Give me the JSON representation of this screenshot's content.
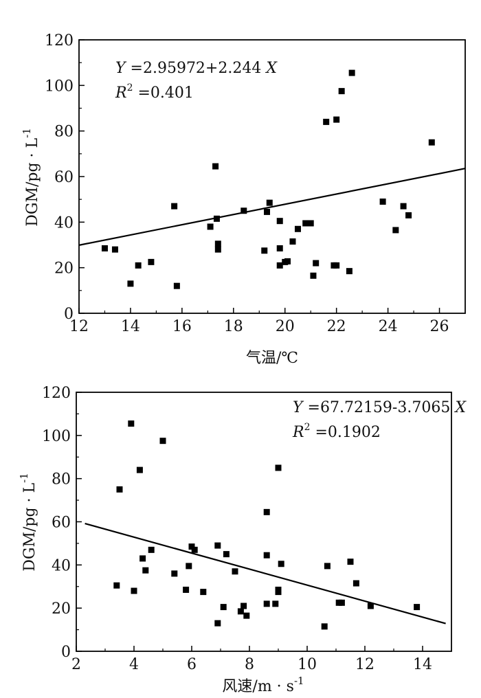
{
  "chart_data": [
    {
      "type": "scatter",
      "xlabel": "气温/℃",
      "ylabel": "DGM/pg · L",
      "ylabel_sup": "-1",
      "xlim": [
        12,
        27
      ],
      "ylim": [
        0,
        120
      ],
      "xticks": [
        12,
        14,
        16,
        18,
        20,
        22,
        24,
        26
      ],
      "yticks": [
        0,
        20,
        40,
        60,
        80,
        100,
        120
      ],
      "grid": false,
      "equation": {
        "y": "Y",
        "rhs": " =2.95972+2.244 ",
        "x": "X"
      },
      "r2": {
        "r": "R",
        "sup": "2",
        "value": "  =0.401"
      },
      "fit": {
        "intercept": 2.95972,
        "slope": 2.244
      },
      "points": [
        [
          13.0,
          28.5
        ],
        [
          13.4,
          28.0
        ],
        [
          14.0,
          13.0
        ],
        [
          14.3,
          21.0
        ],
        [
          14.8,
          22.5
        ],
        [
          15.7,
          47.0
        ],
        [
          15.8,
          12.0
        ],
        [
          17.1,
          38.0
        ],
        [
          17.3,
          64.5
        ],
        [
          17.35,
          41.5
        ],
        [
          17.4,
          30.5
        ],
        [
          17.4,
          28.0
        ],
        [
          18.4,
          45.0
        ],
        [
          19.2,
          27.5
        ],
        [
          19.3,
          44.5
        ],
        [
          19.4,
          48.5
        ],
        [
          19.8,
          40.5
        ],
        [
          19.8,
          28.5
        ],
        [
          19.8,
          21.0
        ],
        [
          20.0,
          22.5
        ],
        [
          20.1,
          22.8
        ],
        [
          20.3,
          31.5
        ],
        [
          20.5,
          37.0
        ],
        [
          20.8,
          39.5
        ],
        [
          21.0,
          39.5
        ],
        [
          21.1,
          16.5
        ],
        [
          21.2,
          22.0
        ],
        [
          21.6,
          84.0
        ],
        [
          21.9,
          21.0
        ],
        [
          22.0,
          21.0
        ],
        [
          22.0,
          85.0
        ],
        [
          22.2,
          97.5
        ],
        [
          22.5,
          18.5
        ],
        [
          22.6,
          105.5
        ],
        [
          23.8,
          49.0
        ],
        [
          24.3,
          36.5
        ],
        [
          24.6,
          47.0
        ],
        [
          24.8,
          43.0
        ],
        [
          25.7,
          75.0
        ]
      ]
    },
    {
      "type": "scatter",
      "xlabel": "风速/m · s",
      "xlabel_sup": "-1",
      "ylabel": "DGM/pg · L",
      "ylabel_sup": "-1",
      "xlim": [
        2,
        15
      ],
      "ylim": [
        0,
        120
      ],
      "xticks": [
        2,
        4,
        6,
        8,
        10,
        12,
        14
      ],
      "yticks": [
        0,
        20,
        40,
        60,
        80,
        100,
        120
      ],
      "grid": false,
      "equation": {
        "y": "Y",
        "rhs": " =67.72159-3.7065 ",
        "x": "X"
      },
      "r2": {
        "r": "R",
        "sup": "2",
        "value": "  =0.1902"
      },
      "fit": {
        "intercept": 67.72159,
        "slope": -3.7065,
        "xrange": [
          2.3,
          14.8
        ]
      },
      "points": [
        [
          3.4,
          30.5
        ],
        [
          3.5,
          75.0
        ],
        [
          3.9,
          105.5
        ],
        [
          4.0,
          28.0
        ],
        [
          4.2,
          84.0
        ],
        [
          4.3,
          43.0
        ],
        [
          4.4,
          37.5
        ],
        [
          4.6,
          47.0
        ],
        [
          5.0,
          97.5
        ],
        [
          5.4,
          36.0
        ],
        [
          5.8,
          28.5
        ],
        [
          5.9,
          39.5
        ],
        [
          6.0,
          48.5
        ],
        [
          6.1,
          47.0
        ],
        [
          6.4,
          27.5
        ],
        [
          6.9,
          49.0
        ],
        [
          6.9,
          13.0
        ],
        [
          7.1,
          20.5
        ],
        [
          7.2,
          45.0
        ],
        [
          7.5,
          37.0
        ],
        [
          7.7,
          18.5
        ],
        [
          7.8,
          21.0
        ],
        [
          7.9,
          16.5
        ],
        [
          8.6,
          64.5
        ],
        [
          8.6,
          44.5
        ],
        [
          8.6,
          22.0
        ],
        [
          8.9,
          22.0
        ],
        [
          9.0,
          85.0
        ],
        [
          9.0,
          28.5
        ],
        [
          9.0,
          27.5
        ],
        [
          9.1,
          40.5
        ],
        [
          10.6,
          11.5
        ],
        [
          10.7,
          39.5
        ],
        [
          11.1,
          22.5
        ],
        [
          11.2,
          22.5
        ],
        [
          11.5,
          41.5
        ],
        [
          11.7,
          31.5
        ],
        [
          12.2,
          21.0
        ],
        [
          13.8,
          20.5
        ]
      ]
    }
  ]
}
